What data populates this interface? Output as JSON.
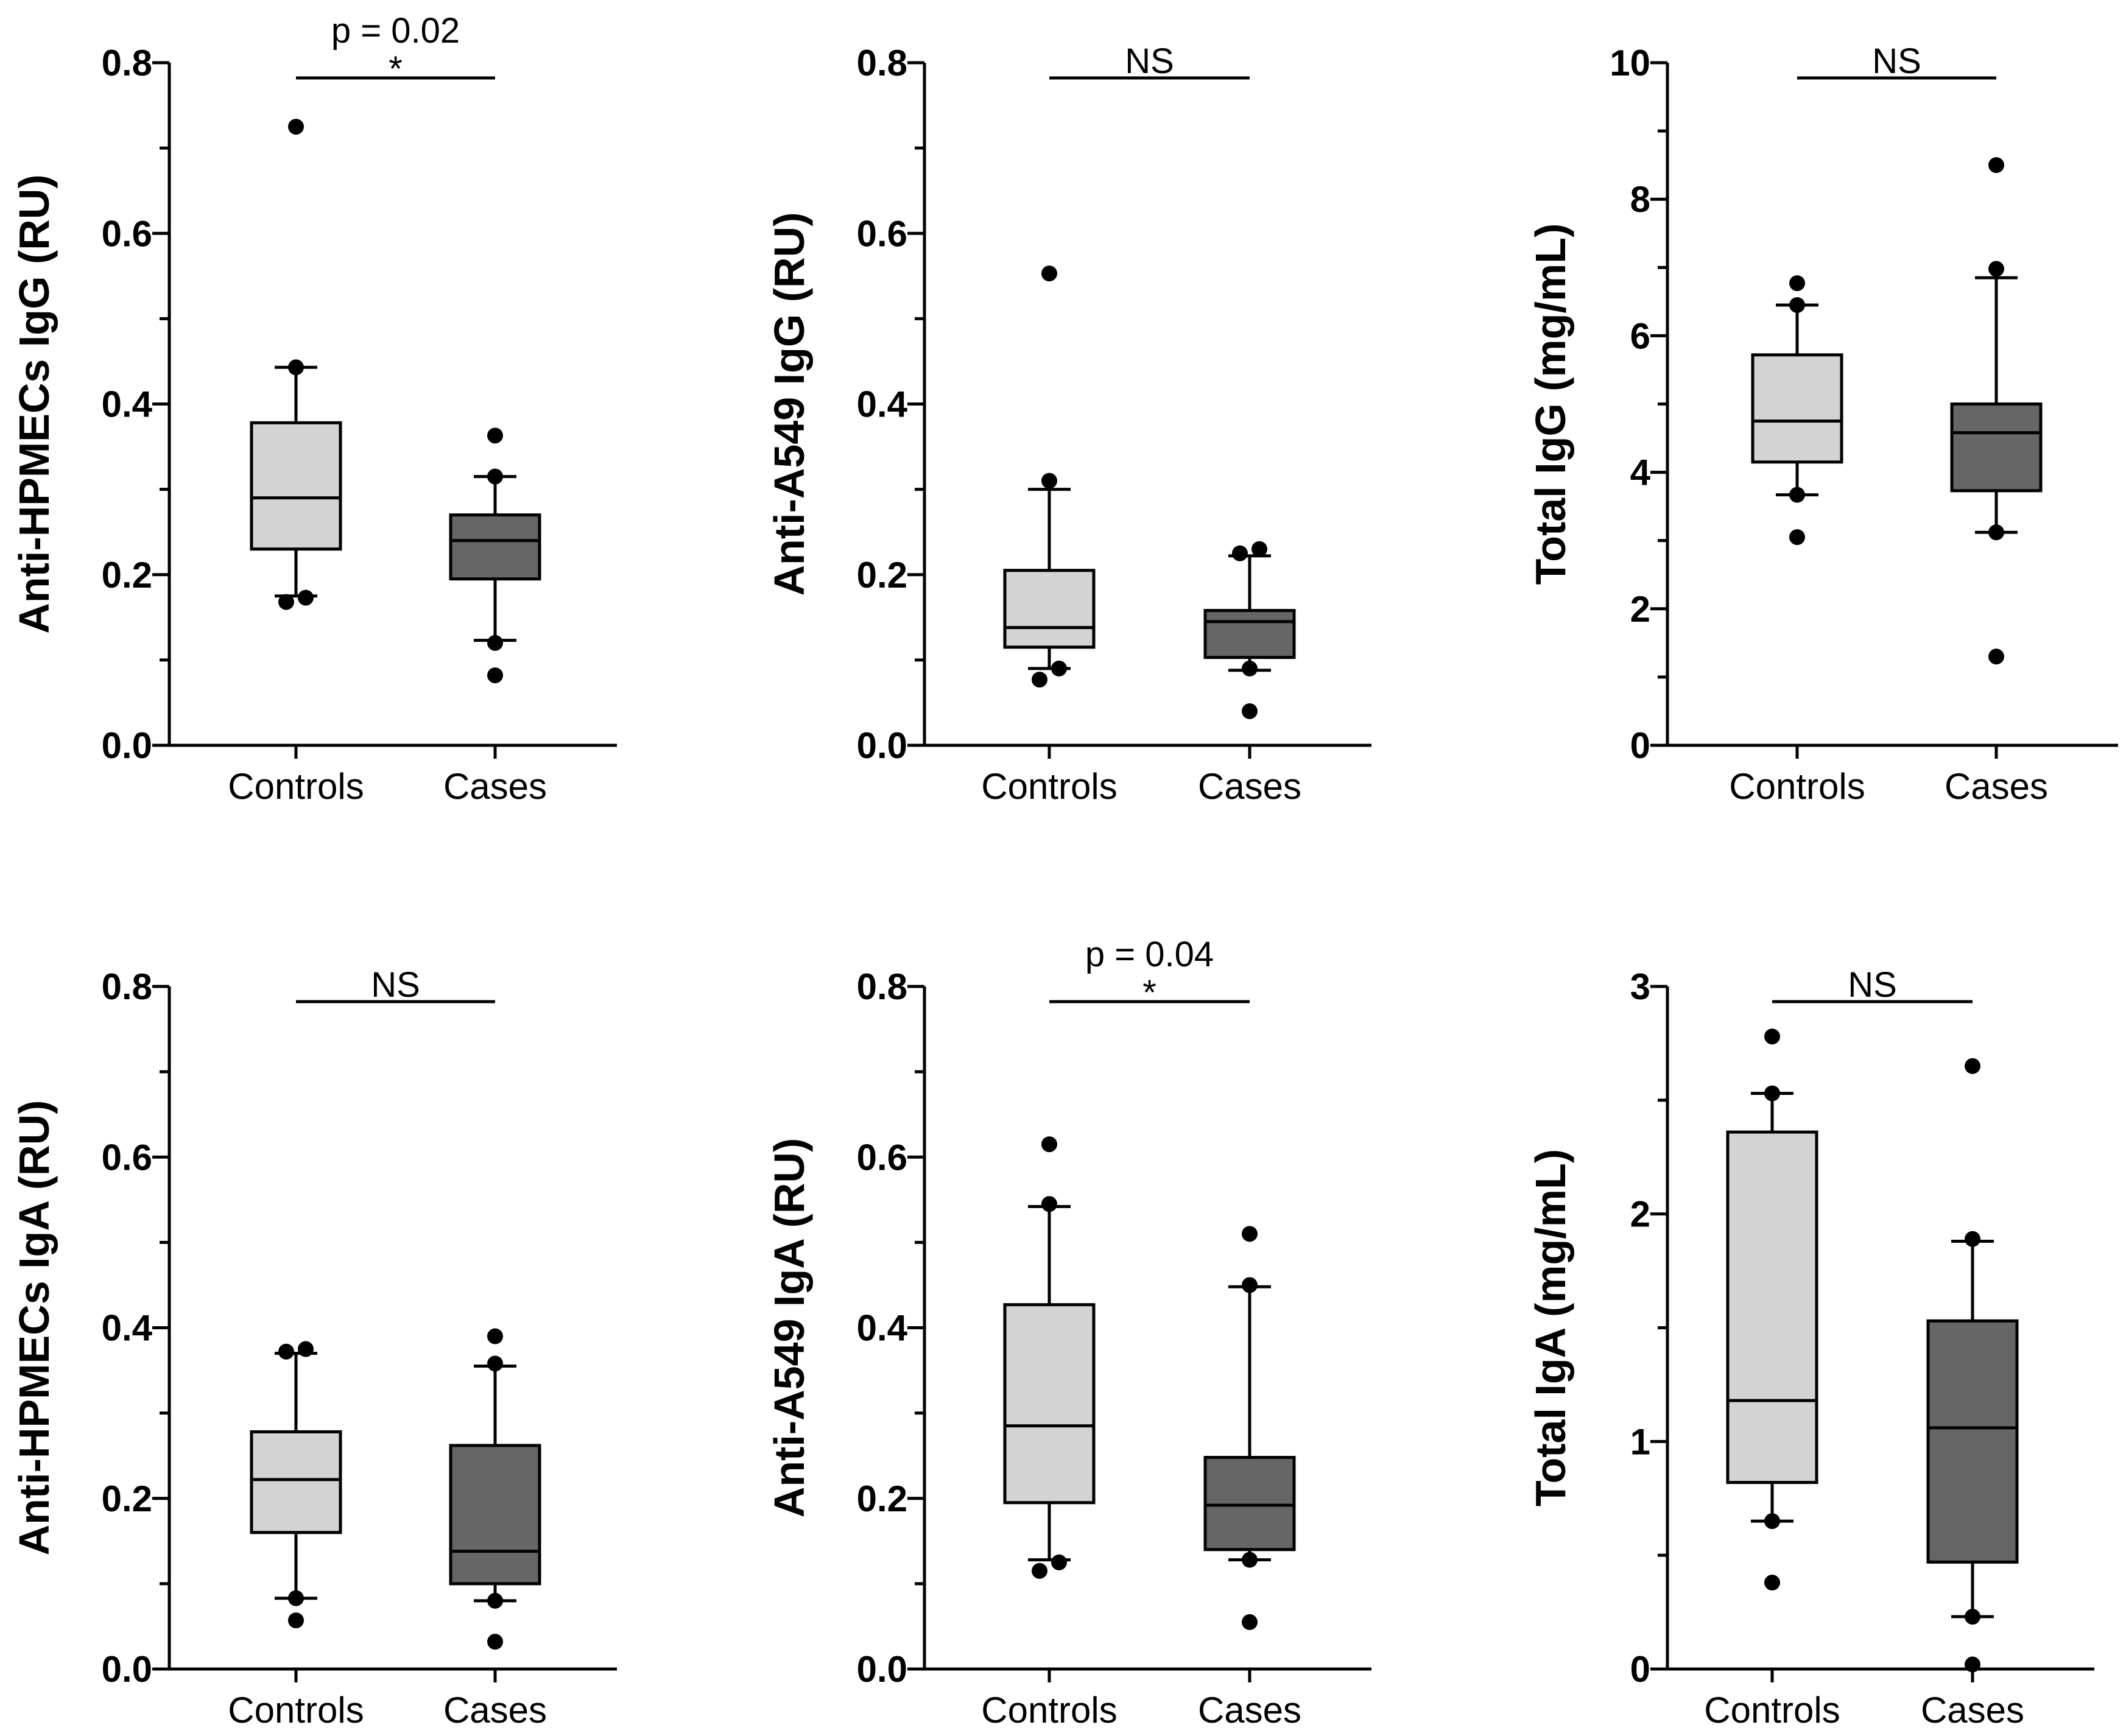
{
  "colors": {
    "controls_fill": "#d3d3d3",
    "cases_fill": "#666666",
    "ink": "#000000"
  },
  "chart_data": [
    {
      "type": "box",
      "ylabel": "Anti-HPMECs IgG (RU)",
      "ylim": [
        0,
        0.8
      ],
      "yticks": [
        "0.0",
        "0.2",
        "0.4",
        "0.6",
        "0.8"
      ],
      "categories": [
        "Controls",
        "Cases"
      ],
      "significance": {
        "p_label": "p = 0.02",
        "mark": "*"
      },
      "boxes": [
        {
          "name": "Controls",
          "q1": 0.23,
          "median": 0.29,
          "q3": 0.378,
          "whisker_low": 0.175,
          "whisker_high": 0.443,
          "outliers": [
            0.168,
            0.173,
            0.443,
            0.725
          ]
        },
        {
          "name": "Cases",
          "q1": 0.195,
          "median": 0.24,
          "q3": 0.27,
          "whisker_low": 0.123,
          "whisker_high": 0.315,
          "outliers": [
            0.082,
            0.12,
            0.315,
            0.363
          ]
        }
      ]
    },
    {
      "type": "box",
      "ylabel": "Anti-A549 IgG (RU)",
      "ylim": [
        0,
        0.8
      ],
      "yticks": [
        "0.0",
        "0.2",
        "0.4",
        "0.6",
        "0.8"
      ],
      "categories": [
        "Controls",
        "Cases"
      ],
      "significance": {
        "p_label": "",
        "mark": "NS"
      },
      "boxes": [
        {
          "name": "Controls",
          "q1": 0.115,
          "median": 0.138,
          "q3": 0.205,
          "whisker_low": 0.09,
          "whisker_high": 0.3,
          "outliers": [
            0.077,
            0.09,
            0.31,
            0.553
          ]
        },
        {
          "name": "Cases",
          "q1": 0.103,
          "median": 0.145,
          "q3": 0.158,
          "whisker_low": 0.088,
          "whisker_high": 0.222,
          "outliers": [
            0.04,
            0.09,
            0.225,
            0.23
          ]
        }
      ]
    },
    {
      "type": "box",
      "ylabel": "Total IgG (mg/mL)",
      "ylim": [
        0,
        10
      ],
      "yticks": [
        "0",
        "2",
        "4",
        "6",
        "8",
        "10"
      ],
      "categories": [
        "Controls",
        "Cases"
      ],
      "significance": {
        "p_label": "",
        "mark": "NS"
      },
      "boxes": [
        {
          "name": "Controls",
          "q1": 4.15,
          "median": 4.75,
          "q3": 5.72,
          "whisker_low": 3.67,
          "whisker_high": 6.45,
          "outliers": [
            3.05,
            3.67,
            6.45,
            6.77
          ]
        },
        {
          "name": "Cases",
          "q1": 3.73,
          "median": 4.58,
          "q3": 5.0,
          "whisker_low": 3.12,
          "whisker_high": 6.85,
          "outliers": [
            1.3,
            3.12,
            6.98,
            8.5
          ]
        }
      ]
    },
    {
      "type": "box",
      "ylabel": "Anti-HPMECs IgA (RU)",
      "ylim": [
        0,
        0.8
      ],
      "yticks": [
        "0.0",
        "0.2",
        "0.4",
        "0.6",
        "0.8"
      ],
      "categories": [
        "Controls",
        "Cases"
      ],
      "significance": {
        "p_label": "",
        "mark": "NS"
      },
      "boxes": [
        {
          "name": "Controls",
          "q1": 0.16,
          "median": 0.222,
          "q3": 0.278,
          "whisker_low": 0.083,
          "whisker_high": 0.37,
          "outliers": [
            0.057,
            0.083,
            0.372,
            0.375
          ]
        },
        {
          "name": "Cases",
          "q1": 0.1,
          "median": 0.138,
          "q3": 0.262,
          "whisker_low": 0.08,
          "whisker_high": 0.355,
          "outliers": [
            0.032,
            0.08,
            0.358,
            0.39
          ]
        }
      ]
    },
    {
      "type": "box",
      "ylabel": "Anti-A549 IgA (RU)",
      "ylim": [
        0,
        0.8
      ],
      "yticks": [
        "0.0",
        "0.2",
        "0.4",
        "0.6",
        "0.8"
      ],
      "categories": [
        "Controls",
        "Cases"
      ],
      "significance": {
        "p_label": "p = 0.04",
        "mark": "*"
      },
      "boxes": [
        {
          "name": "Controls",
          "q1": 0.195,
          "median": 0.285,
          "q3": 0.427,
          "whisker_low": 0.128,
          "whisker_high": 0.542,
          "outliers": [
            0.115,
            0.125,
            0.545,
            0.615
          ]
        },
        {
          "name": "Cases",
          "q1": 0.14,
          "median": 0.192,
          "q3": 0.248,
          "whisker_low": 0.128,
          "whisker_high": 0.448,
          "outliers": [
            0.055,
            0.128,
            0.45,
            0.51
          ]
        }
      ]
    },
    {
      "type": "box",
      "ylabel": "Total IgA (mg/mL)",
      "ylim": [
        0,
        3
      ],
      "yticks": [
        "0",
        "1",
        "2",
        "3"
      ],
      "categories": [
        "Controls",
        "Cases"
      ],
      "significance": {
        "p_label": "",
        "mark": "NS"
      },
      "boxes": [
        {
          "name": "Controls",
          "q1": 0.82,
          "median": 1.18,
          "q3": 2.36,
          "whisker_low": 0.65,
          "whisker_high": 2.53,
          "outliers": [
            0.38,
            0.65,
            2.53,
            2.78
          ]
        },
        {
          "name": "Cases",
          "q1": 0.47,
          "median": 1.06,
          "q3": 1.53,
          "whisker_low": 0.23,
          "whisker_high": 1.88,
          "outliers": [
            0.02,
            0.23,
            1.89,
            2.65
          ]
        }
      ]
    }
  ]
}
